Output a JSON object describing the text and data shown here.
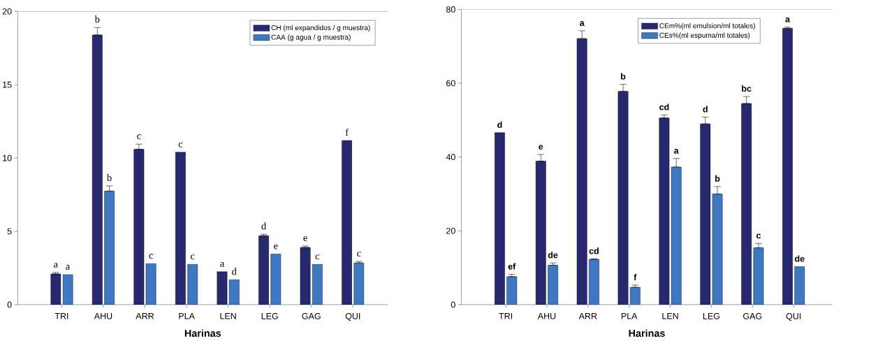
{
  "chart_data": [
    {
      "type": "bar",
      "xlabel": "Harinas",
      "categories": [
        "TRI",
        "AHU",
        "ARR",
        "PLA",
        "LEN",
        "LEG",
        "GAG",
        "QUI"
      ],
      "ylim": [
        0,
        20
      ],
      "yticks": [
        0,
        5,
        10,
        15,
        20
      ],
      "legend": "top right",
      "series": [
        {
          "name": "CH (ml expandidos / g muestra)",
          "color": "#28286e",
          "values": [
            2.1,
            18.4,
            10.6,
            10.4,
            2.25,
            4.7,
            3.9,
            11.2
          ],
          "errors": [
            [
              2.1,
              2.2
            ],
            [
              18.4,
              18.9
            ],
            [
              10.6,
              10.95
            ],
            null,
            null,
            [
              4.7,
              4.8
            ],
            [
              3.9,
              4.0
            ],
            null
          ],
          "value_labels": [
            "a",
            "b",
            "c",
            "c",
            "a",
            "d",
            "e",
            "f"
          ]
        },
        {
          "name": "CAA (g agua / g muestra)",
          "color": "#3f78c0",
          "values": [
            2.05,
            7.75,
            2.8,
            2.75,
            1.7,
            3.45,
            2.75,
            2.85
          ],
          "errors": [
            null,
            [
              7.75,
              8.1
            ],
            null,
            null,
            null,
            null,
            null,
            [
              2.85,
              2.95
            ]
          ],
          "value_labels": [
            "a",
            "b",
            "c",
            "c",
            "d",
            "e",
            "c",
            "c"
          ]
        }
      ]
    },
    {
      "type": "bar",
      "xlabel": "Harinas",
      "categories": [
        "TRI",
        "AHU",
        "ARR",
        "PLA",
        "LEN",
        "LEG",
        "GAG",
        "QUI"
      ],
      "ylim": [
        0,
        80
      ],
      "yticks": [
        0,
        20,
        40,
        60,
        80
      ],
      "legend": "top right",
      "series": [
        {
          "name": "CEm%(ml emulsion/ml totales)",
          "color": "#28286e",
          "values": [
            46.6,
            38.9,
            72.1,
            57.8,
            50.6,
            49.0,
            54.5,
            74.9
          ],
          "errors": [
            null,
            [
              38.9,
              40.7
            ],
            [
              72.1,
              74.2
            ],
            [
              57.8,
              59.7
            ],
            [
              50.6,
              51.4
            ],
            [
              49.0,
              50.8
            ],
            [
              54.5,
              56.4
            ],
            [
              74.9,
              75.2
            ]
          ],
          "value_labels": [
            "d",
            "e",
            "a",
            "b",
            "cd",
            "d",
            "bc",
            "a"
          ]
        },
        {
          "name": "CEs%(ml espuma/ml totales)",
          "color": "#3f78c0",
          "values": [
            7.6,
            10.7,
            12.3,
            4.7,
            37.3,
            30.0,
            15.4,
            10.3
          ],
          "errors": [
            [
              7.6,
              8.2
            ],
            [
              10.7,
              11.3
            ],
            [
              12.3,
              12.4
            ],
            [
              4.7,
              5.3
            ],
            [
              37.3,
              39.6
            ],
            [
              30.0,
              32.0
            ],
            [
              15.4,
              16.6
            ],
            null
          ],
          "value_labels": [
            "ef",
            "de",
            "cd",
            "f",
            "a",
            "b",
            "c",
            "de"
          ]
        }
      ]
    }
  ]
}
